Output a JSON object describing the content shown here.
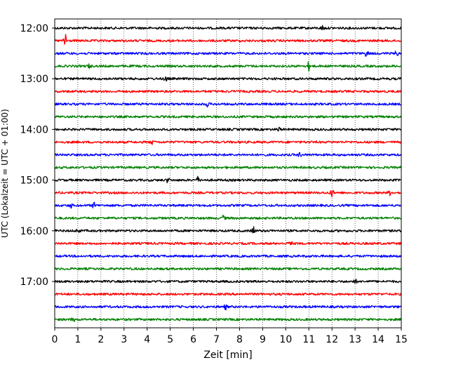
{
  "chart_data": {
    "type": "line",
    "title": "",
    "xlabel": "Zeit  [min]",
    "ylabel": "UTC (Lokalzeit = UTC + 01:00)",
    "xlim": [
      0,
      15
    ],
    "x_ticks": [
      "0",
      "1",
      "2",
      "3",
      "4",
      "5",
      "6",
      "7",
      "8",
      "9",
      "10",
      "11",
      "12",
      "13",
      "14",
      "15"
    ],
    "y_ticks": [
      "12:00",
      "13:00",
      "14:00",
      "15:00",
      "16:00",
      "17:00"
    ],
    "grid": "vertical dotted lines at each minute",
    "trace_interval_min": 15,
    "start_time": "12:00",
    "trace_colors": [
      "#000000",
      "#ff0000",
      "#0000ff",
      "#008000"
    ],
    "series": [
      {
        "start": "12:00",
        "color": "#000000",
        "events": [
          {
            "t": 11.6,
            "amp": 3.5
          }
        ]
      },
      {
        "start": "12:15",
        "color": "#ff0000",
        "events": [
          {
            "t": 0.45,
            "amp": 14
          }
        ]
      },
      {
        "start": "12:30",
        "color": "#0000ff",
        "events": [
          {
            "t": 13.5,
            "amp": 4.5
          },
          {
            "t": 14.8,
            "amp": 4
          }
        ]
      },
      {
        "start": "12:45",
        "color": "#008000",
        "events": [
          {
            "t": 11.0,
            "amp": 6
          },
          {
            "t": 1.5,
            "amp": 3
          }
        ]
      },
      {
        "start": "13:00",
        "color": "#000000",
        "events": [
          {
            "t": 4.8,
            "amp": 4
          }
        ]
      },
      {
        "start": "13:15",
        "color": "#ff0000",
        "events": []
      },
      {
        "start": "13:30",
        "color": "#0000ff",
        "events": [
          {
            "t": 6.6,
            "amp": 3
          }
        ]
      },
      {
        "start": "13:45",
        "color": "#008000",
        "events": []
      },
      {
        "start": "14:00",
        "color": "#000000",
        "events": [
          {
            "t": 9.7,
            "amp": 3
          }
        ]
      },
      {
        "start": "14:15",
        "color": "#ff0000",
        "events": [
          {
            "t": 4.2,
            "amp": 3
          }
        ]
      },
      {
        "start": "14:30",
        "color": "#0000ff",
        "events": [
          {
            "t": 10.6,
            "amp": 3
          }
        ]
      },
      {
        "start": "14:45",
        "color": "#008000",
        "events": []
      },
      {
        "start": "15:00",
        "color": "#000000",
        "events": [
          {
            "t": 6.2,
            "amp": 4
          },
          {
            "t": 4.9,
            "amp": 3.5
          }
        ]
      },
      {
        "start": "15:15",
        "color": "#ff0000",
        "events": [
          {
            "t": 12.0,
            "amp": 6
          },
          {
            "t": 14.5,
            "amp": 3
          }
        ]
      },
      {
        "start": "15:30",
        "color": "#0000ff",
        "events": [
          {
            "t": 1.7,
            "amp": 4
          },
          {
            "t": 0.7,
            "amp": 3
          }
        ]
      },
      {
        "start": "15:45",
        "color": "#008000",
        "events": [
          {
            "t": 7.3,
            "amp": 3
          }
        ]
      },
      {
        "start": "16:00",
        "color": "#000000",
        "events": [
          {
            "t": 8.6,
            "amp": 6
          },
          {
            "t": 1.0,
            "amp": 3.5
          }
        ]
      },
      {
        "start": "16:15",
        "color": "#ff0000",
        "events": [
          {
            "t": 10.2,
            "amp": 4
          }
        ]
      },
      {
        "start": "16:30",
        "color": "#0000ff",
        "events": []
      },
      {
        "start": "16:45",
        "color": "#008000",
        "events": []
      },
      {
        "start": "17:00",
        "color": "#000000",
        "events": [
          {
            "t": 13.0,
            "amp": 3
          }
        ]
      },
      {
        "start": "17:15",
        "color": "#ff0000",
        "events": []
      },
      {
        "start": "17:30",
        "color": "#0000ff",
        "events": [
          {
            "t": 7.4,
            "amp": 3
          }
        ]
      },
      {
        "start": "17:45",
        "color": "#008000",
        "events": [
          {
            "t": 0.8,
            "amp": 3
          }
        ]
      }
    ]
  }
}
